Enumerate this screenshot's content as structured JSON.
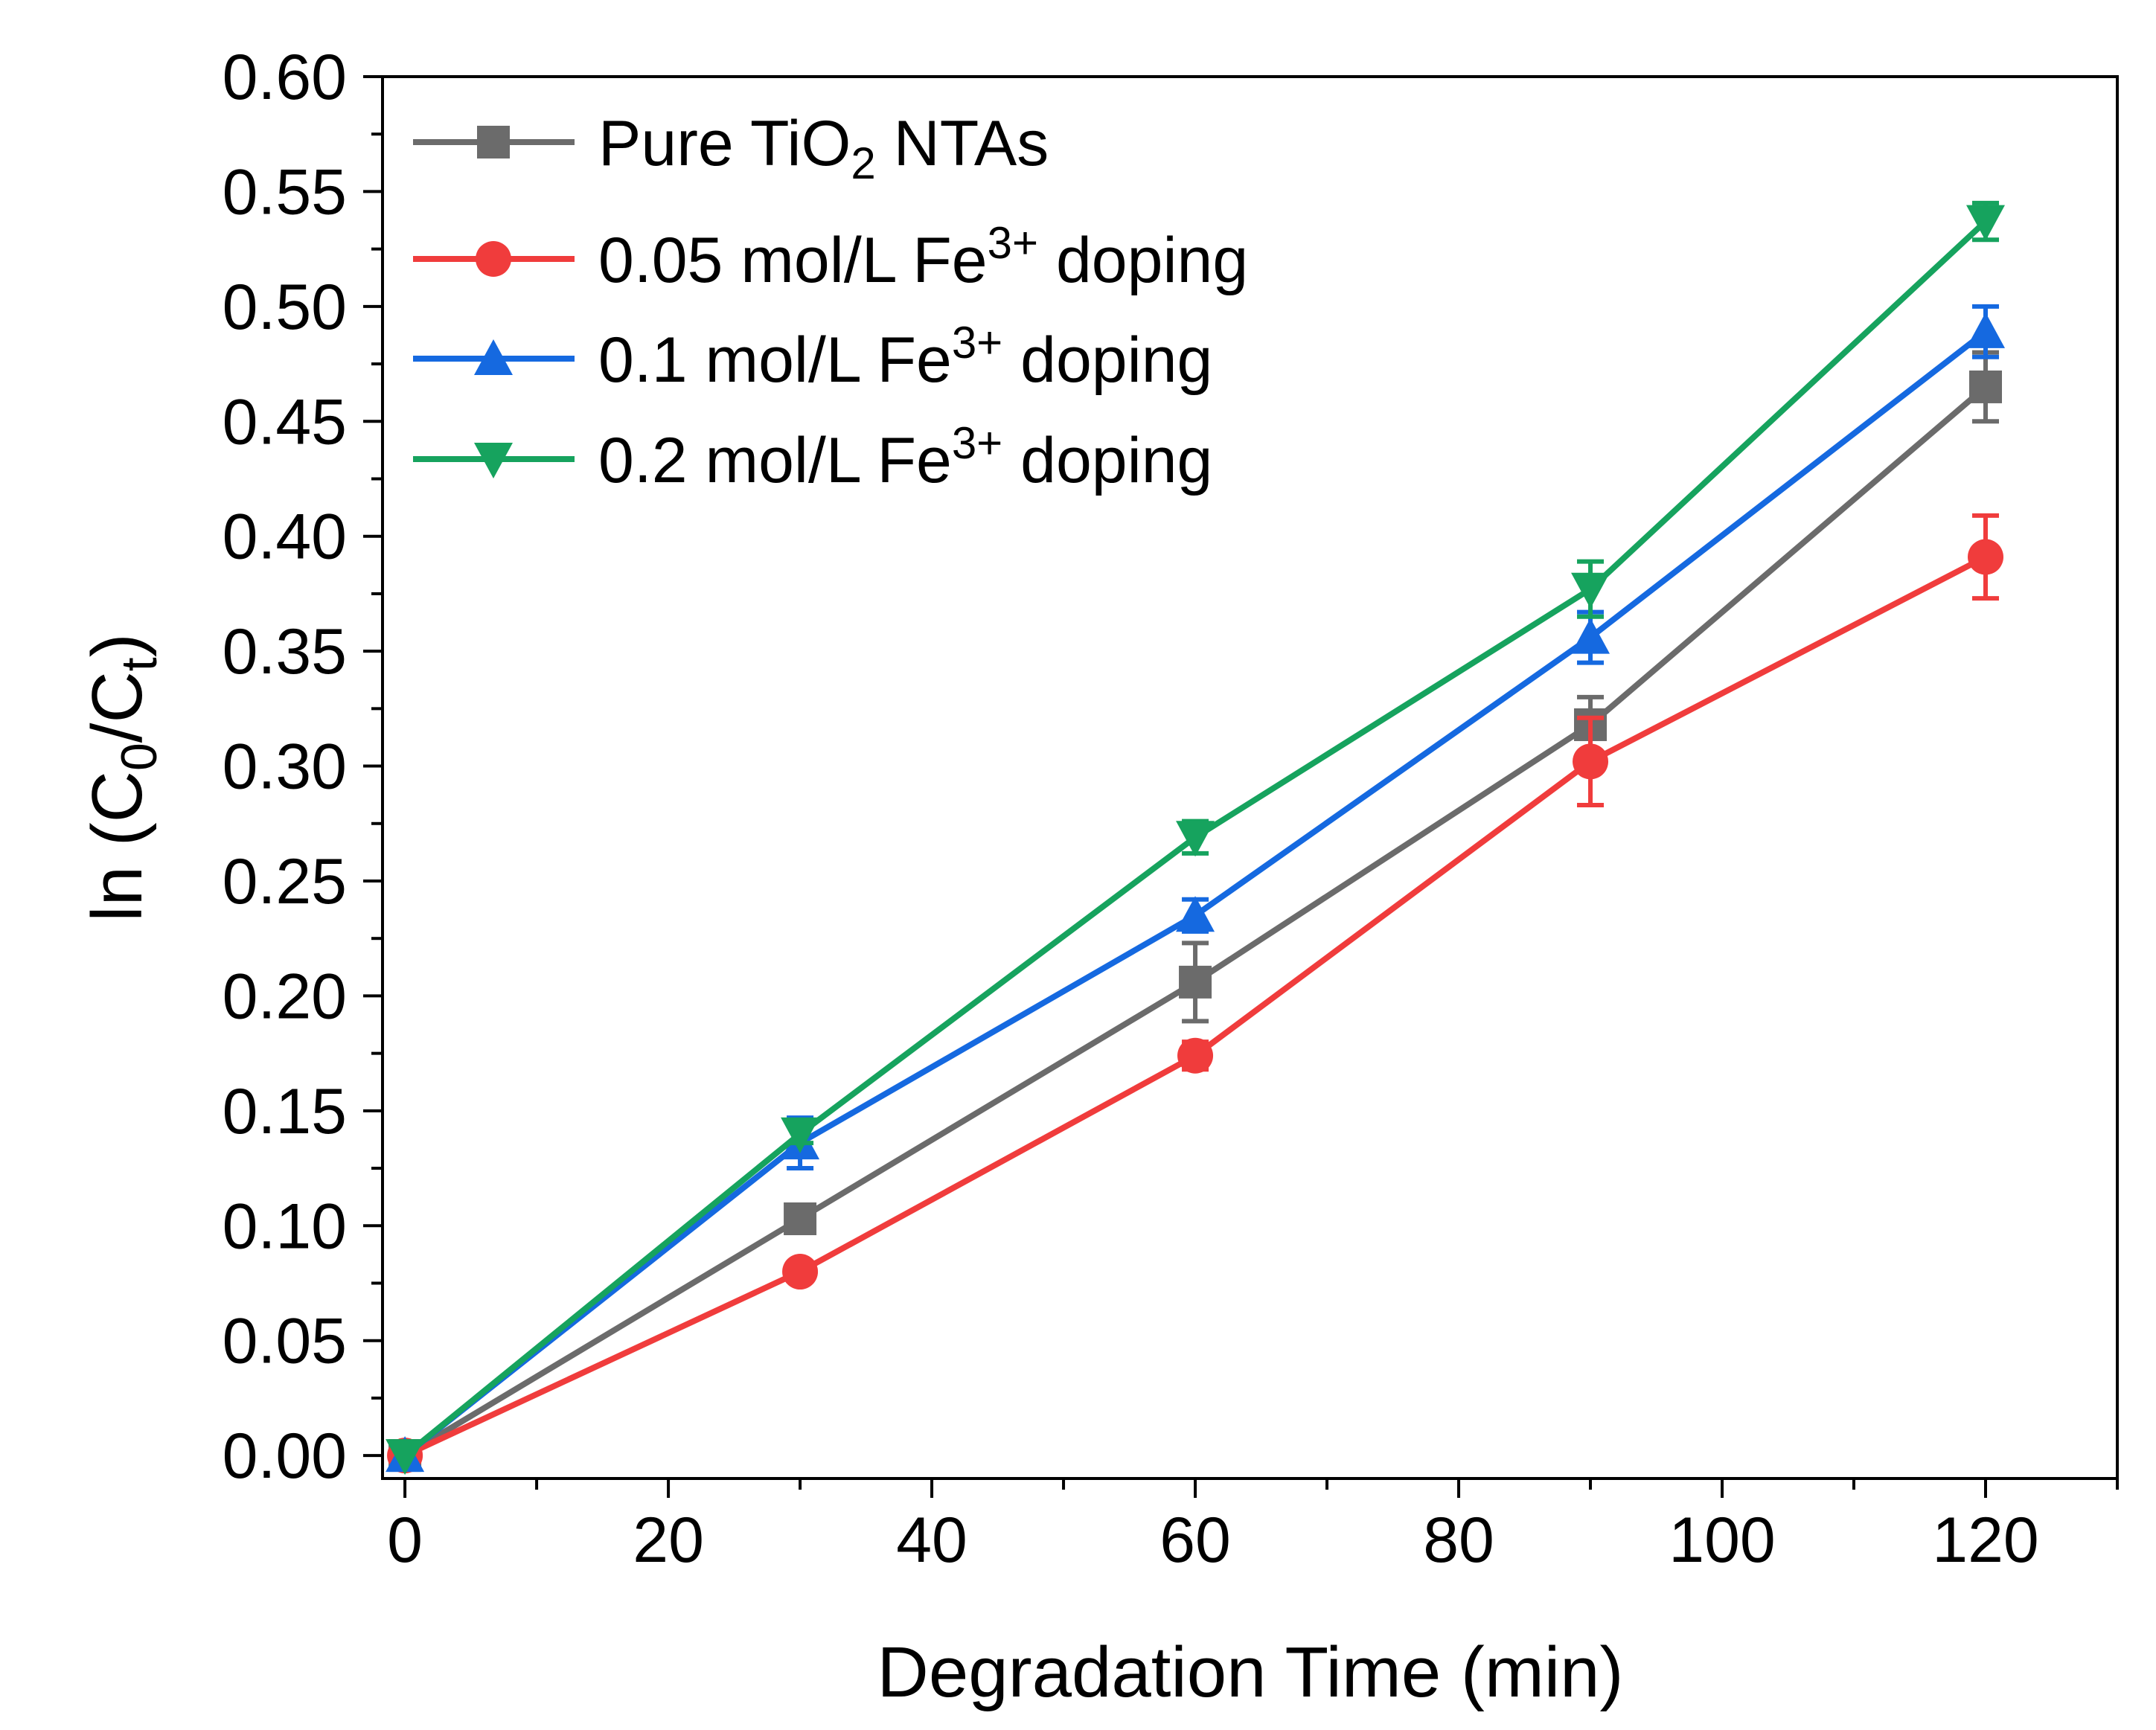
{
  "chart_data": {
    "type": "line",
    "title": "",
    "xlabel": "Degradation Time (min)",
    "ylabel": "ln (C0/Ct)",
    "ylabel_parts": {
      "prefix": "ln (C",
      "sub1": "0",
      "mid": "/C",
      "sub2": "t",
      "suffix": ")"
    },
    "xlim": [
      -1.7,
      130
    ],
    "ylim": [
      -0.01,
      0.6
    ],
    "xticks": [
      0,
      20,
      40,
      60,
      80,
      100,
      120
    ],
    "xtick_labels": [
      "0",
      "20",
      "40",
      "60",
      "80",
      "100",
      "120"
    ],
    "yticks": [
      0,
      0.05,
      0.1,
      0.15,
      0.2,
      0.25,
      0.3,
      0.35,
      0.4,
      0.45,
      0.5,
      0.55,
      0.6
    ],
    "ytick_labels": [
      "0.00",
      "0.05",
      "0.10",
      "0.15",
      "0.20",
      "0.25",
      "0.30",
      "0.35",
      "0.40",
      "0.45",
      "0.50",
      "0.55",
      "0.60"
    ],
    "grid": false,
    "legend_position": "top-left",
    "x": [
      0,
      30,
      60,
      90,
      120
    ],
    "series": [
      {
        "name": "Pure TiO2 NTAs",
        "legend": {
          "pre": "Pure TiO",
          "sub": "2",
          "post": " NTAs"
        },
        "color": "#6b6b6b",
        "marker": "square",
        "values": [
          0,
          0.103,
          0.206,
          0.318,
          0.465
        ],
        "errors": [
          0,
          0.006,
          0.017,
          0.012,
          0.015
        ]
      },
      {
        "name": "0.05 mol/L Fe3+ doping",
        "legend": {
          "pre": "0.05 mol/L Fe",
          "sup": "3+",
          "post": " doping"
        },
        "color": "#f03c3c",
        "marker": "circle",
        "values": [
          0,
          0.08,
          0.174,
          0.302,
          0.391
        ],
        "errors": [
          0,
          0.004,
          0.006,
          0.019,
          0.018
        ]
      },
      {
        "name": "0.1 mol/L Fe3+ doping",
        "legend": {
          "pre": "0.1 mol/L Fe",
          "sup": "3+",
          "post": " doping"
        },
        "color": "#1569e0",
        "marker": "triangle-up",
        "values": [
          0,
          0.136,
          0.235,
          0.356,
          0.489
        ],
        "errors": [
          0,
          0.011,
          0.007,
          0.011,
          0.011
        ]
      },
      {
        "name": "0.2 mol/L Fe3+ doping",
        "legend": {
          "pre": "0.2 mol/L Fe",
          "sup": "3+",
          "post": " doping"
        },
        "color": "#16a35e",
        "marker": "triangle-down",
        "values": [
          0,
          0.14,
          0.269,
          0.377,
          0.537
        ],
        "errors": [
          0,
          0.004,
          0.007,
          0.012,
          0.008
        ]
      }
    ]
  }
}
